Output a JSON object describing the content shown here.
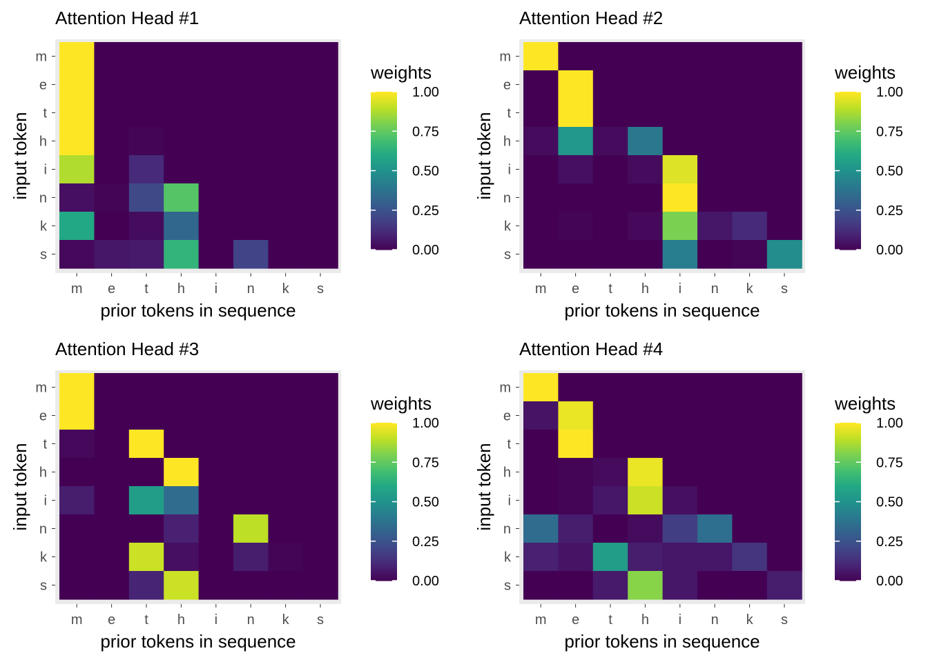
{
  "chart_data": [
    {
      "type": "heatmap",
      "title": "Attention Head #1",
      "xlabel": "prior tokens in sequence",
      "ylabel": "input token",
      "x_categories": [
        "m",
        "e",
        "t",
        "h",
        "i",
        "n",
        "k",
        "s"
      ],
      "y_categories": [
        "m",
        "e",
        "t",
        "h",
        "i",
        "n",
        "k",
        "s"
      ],
      "legend_title": "weights",
      "legend_ticks": [
        "1.00",
        "0.75",
        "0.50",
        "0.25",
        "0.00"
      ],
      "range": [
        0,
        1
      ],
      "values": [
        [
          1.0,
          0,
          0,
          0,
          0,
          0,
          0,
          0
        ],
        [
          1.0,
          0,
          0,
          0,
          0,
          0,
          0,
          0
        ],
        [
          1.0,
          0,
          0,
          0,
          0,
          0,
          0,
          0
        ],
        [
          1.0,
          0,
          0.01,
          0,
          0,
          0,
          0,
          0
        ],
        [
          0.88,
          0,
          0.12,
          0,
          0,
          0,
          0,
          0
        ],
        [
          0.04,
          0.01,
          0.22,
          0.73,
          0,
          0,
          0,
          0
        ],
        [
          0.6,
          0,
          0.03,
          0.33,
          0,
          0,
          0,
          0
        ],
        [
          0.02,
          0.06,
          0.07,
          0.65,
          0,
          0.2,
          0,
          0
        ]
      ]
    },
    {
      "type": "heatmap",
      "title": "Attention Head #2",
      "xlabel": "prior tokens in sequence",
      "ylabel": "input token",
      "x_categories": [
        "m",
        "e",
        "t",
        "h",
        "i",
        "n",
        "k",
        "s"
      ],
      "y_categories": [
        "m",
        "e",
        "t",
        "h",
        "i",
        "n",
        "k",
        "s"
      ],
      "legend_title": "weights",
      "legend_ticks": [
        "1.00",
        "0.75",
        "0.50",
        "0.25",
        "0.00"
      ],
      "range": [
        0,
        1
      ],
      "values": [
        [
          1.0,
          0,
          0,
          0,
          0,
          0,
          0,
          0
        ],
        [
          0,
          1.0,
          0,
          0,
          0,
          0,
          0,
          0
        ],
        [
          0,
          1.0,
          0,
          0,
          0,
          0,
          0,
          0
        ],
        [
          0.03,
          0.53,
          0.03,
          0.4,
          0,
          0,
          0,
          0
        ],
        [
          0,
          0.04,
          0,
          0.03,
          0.95,
          0,
          0,
          0
        ],
        [
          0,
          0,
          0,
          0,
          1.0,
          0,
          0,
          0
        ],
        [
          0,
          0.01,
          0,
          0.02,
          0.8,
          0.06,
          0.12,
          0
        ],
        [
          0,
          0,
          0,
          0,
          0.42,
          0,
          0.01,
          0.48
        ]
      ]
    },
    {
      "type": "heatmap",
      "title": "Attention Head #3",
      "xlabel": "prior tokens in sequence",
      "ylabel": "input token",
      "x_categories": [
        "m",
        "e",
        "t",
        "h",
        "i",
        "n",
        "k",
        "s"
      ],
      "y_categories": [
        "m",
        "e",
        "t",
        "h",
        "i",
        "n",
        "k",
        "s"
      ],
      "legend_title": "weights",
      "legend_ticks": [
        "1.00",
        "0.75",
        "0.50",
        "0.25",
        "0.00"
      ],
      "range": [
        0,
        1
      ],
      "values": [
        [
          1.0,
          0,
          0,
          0,
          0,
          0,
          0,
          0
        ],
        [
          1.0,
          0,
          0,
          0,
          0,
          0,
          0,
          0
        ],
        [
          0.02,
          0,
          1.0,
          0,
          0,
          0,
          0,
          0
        ],
        [
          0,
          0,
          0,
          1.0,
          0,
          0,
          0,
          0
        ],
        [
          0.08,
          0,
          0.55,
          0.35,
          0,
          0,
          0,
          0
        ],
        [
          0,
          0,
          0,
          0.09,
          0,
          0.9,
          0,
          0
        ],
        [
          0,
          0,
          0.92,
          0.04,
          0,
          0.08,
          0.01,
          0
        ],
        [
          0,
          0,
          0.1,
          0.92,
          0,
          0,
          0,
          0
        ]
      ]
    },
    {
      "type": "heatmap",
      "title": "Attention Head #4",
      "xlabel": "prior tokens in sequence",
      "ylabel": "input token",
      "x_categories": [
        "m",
        "e",
        "t",
        "h",
        "i",
        "n",
        "k",
        "s"
      ],
      "y_categories": [
        "m",
        "e",
        "t",
        "h",
        "i",
        "n",
        "k",
        "s"
      ],
      "legend_title": "weights",
      "legend_ticks": [
        "1.00",
        "0.75",
        "0.50",
        "0.25",
        "0.00"
      ],
      "range": [
        0,
        1
      ],
      "values": [
        [
          1.0,
          0,
          0,
          0,
          0,
          0,
          0,
          0
        ],
        [
          0.05,
          0.97,
          0,
          0,
          0,
          0,
          0,
          0
        ],
        [
          0,
          1.0,
          0,
          0,
          0,
          0,
          0,
          0
        ],
        [
          0,
          0.01,
          0.03,
          0.97,
          0,
          0,
          0,
          0
        ],
        [
          0,
          0.01,
          0.06,
          0.92,
          0.04,
          0,
          0,
          0
        ],
        [
          0.35,
          0.08,
          0,
          0.03,
          0.18,
          0.36,
          0,
          0
        ],
        [
          0.09,
          0.05,
          0.55,
          0.08,
          0.06,
          0.06,
          0.15,
          0
        ],
        [
          0,
          0,
          0.07,
          0.82,
          0.06,
          0,
          0,
          0.08
        ]
      ]
    }
  ]
}
